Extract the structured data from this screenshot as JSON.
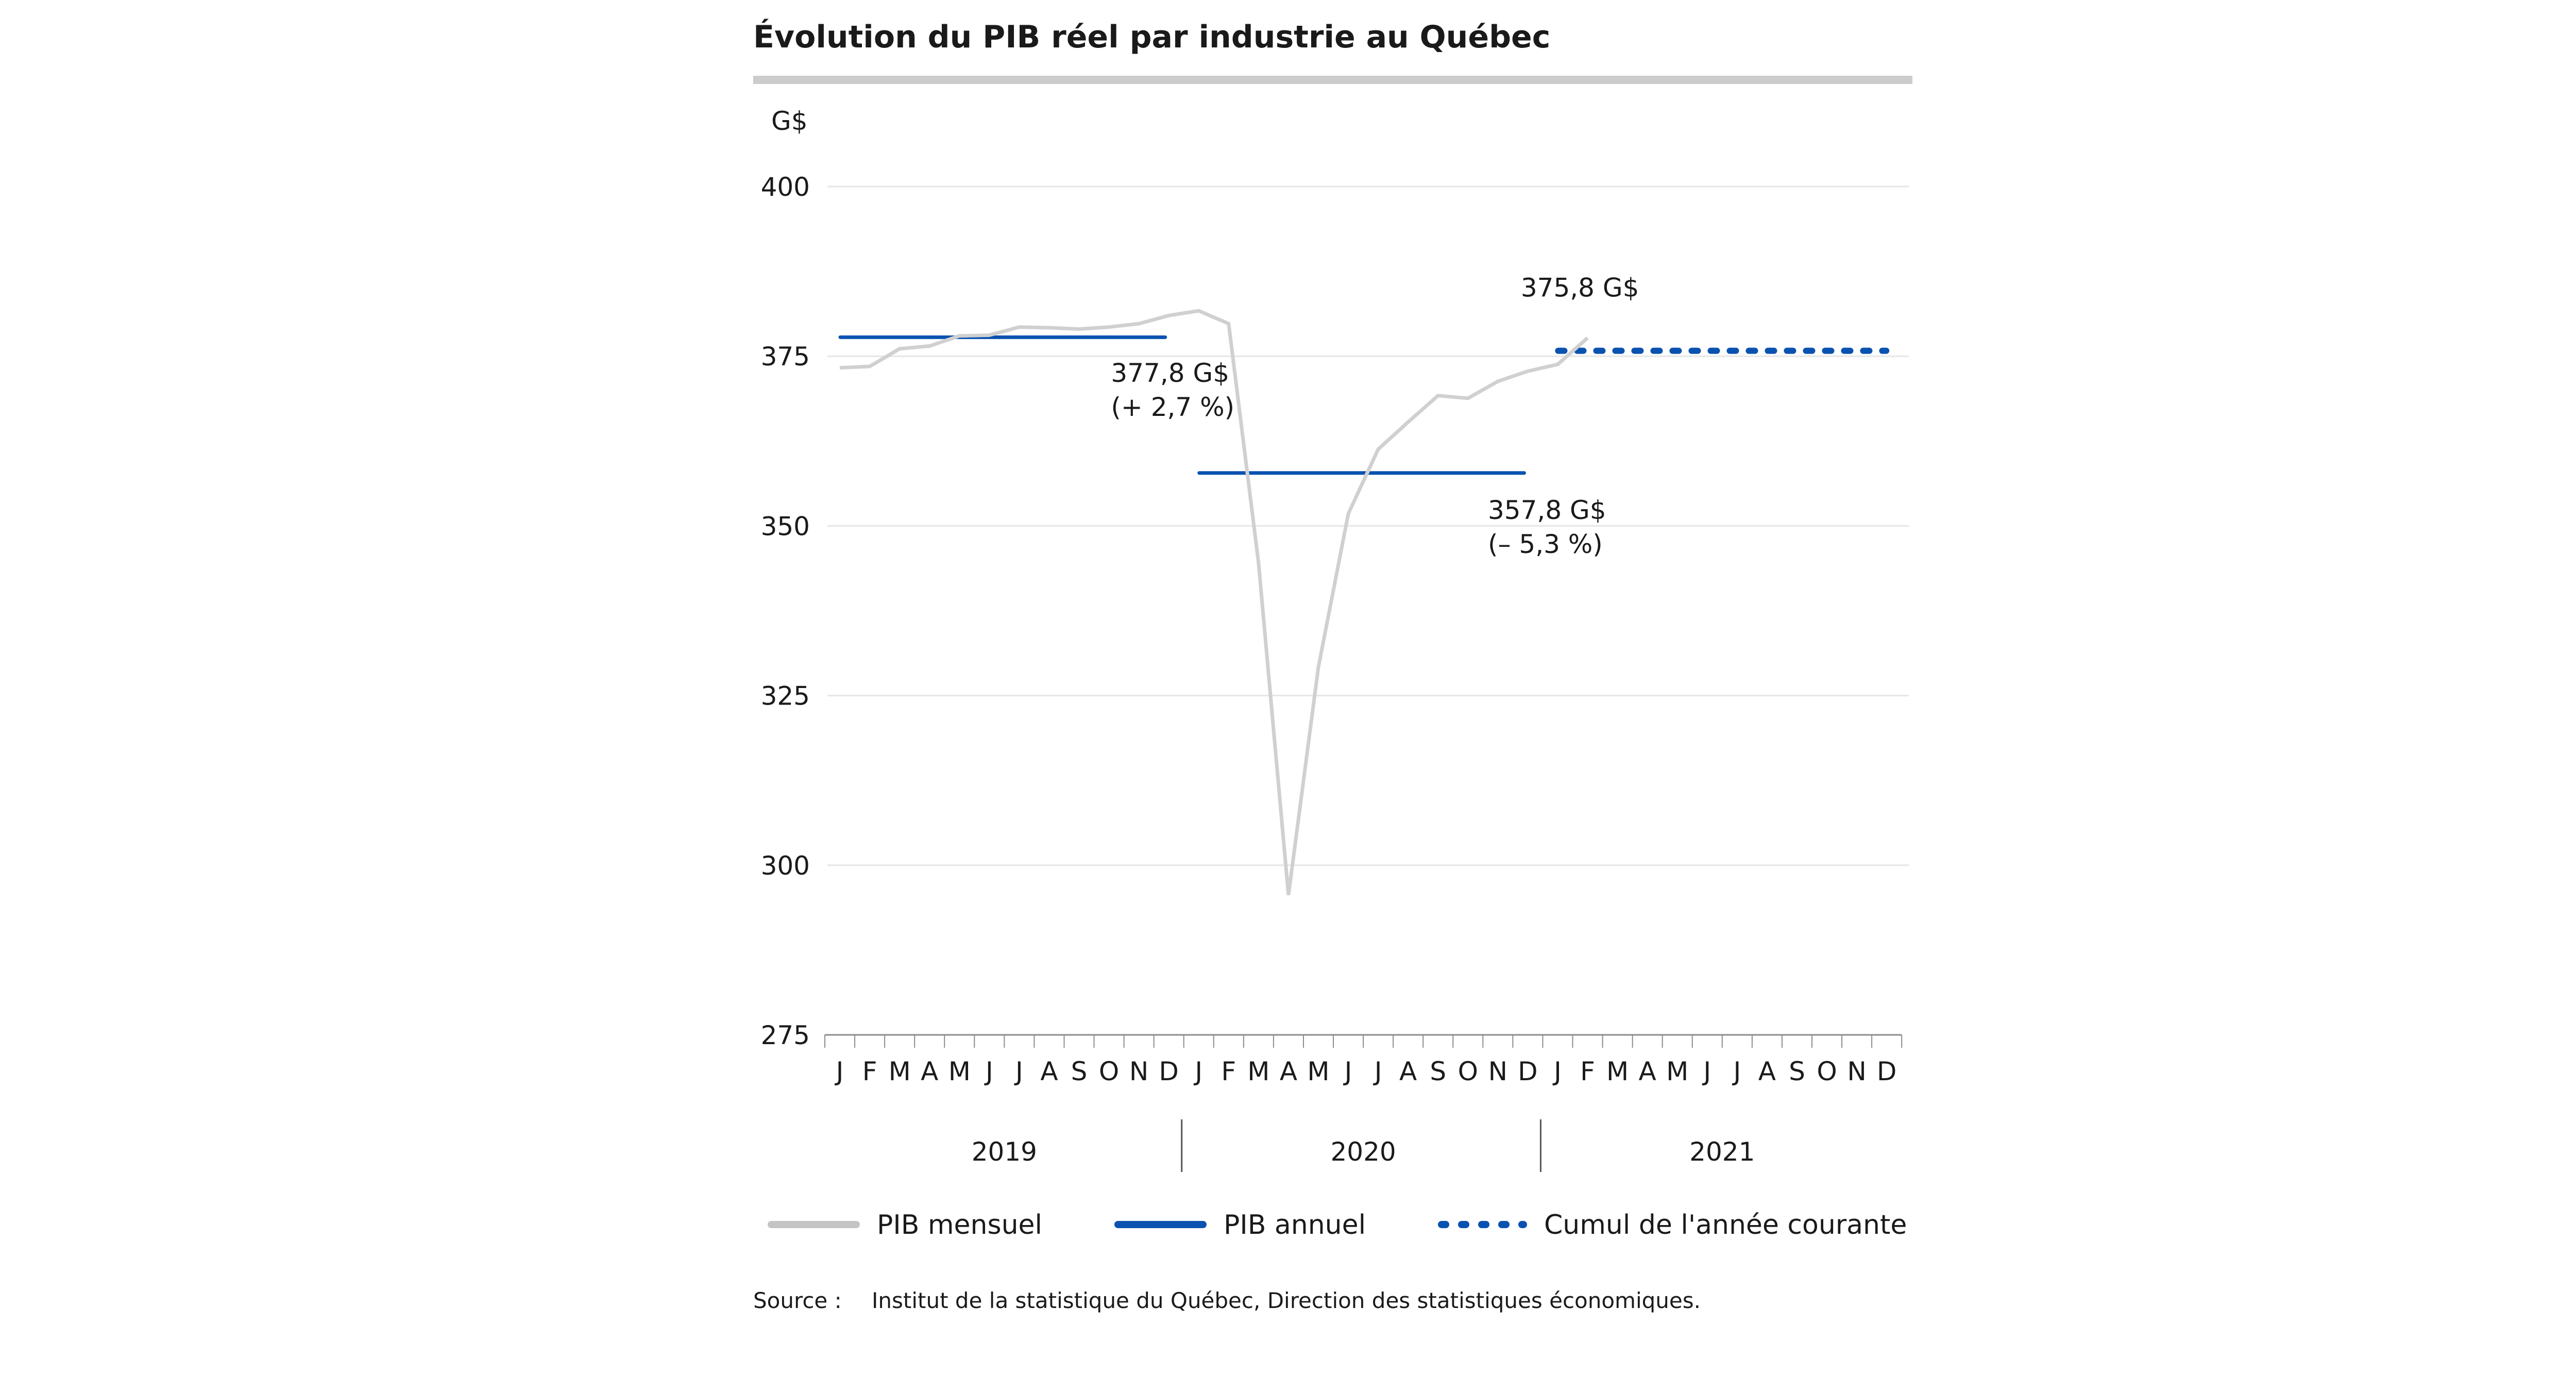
{
  "header": {
    "title": "Évolution du PIB réel par industrie au Québec"
  },
  "colors": {
    "header_bar": "#cccccc",
    "gridline": "#e6e6e6",
    "axis": "#8c8c8c",
    "monthly": "#d0d0d0",
    "annual": "#0a52b0",
    "cumulative": "#0a52b0",
    "text": "#1a1a1a"
  },
  "legend": {
    "items": [
      {
        "label": "PIB mensuel",
        "style": "solid-grey"
      },
      {
        "label": "PIB annuel",
        "style": "solid-blue"
      },
      {
        "label": "Cumul de l'année courante",
        "style": "dotted-blue"
      }
    ]
  },
  "source": {
    "label": "Source :",
    "text": "Institut de la statistique du Québec, Direction des statistiques économiques."
  },
  "annotations": [
    {
      "line1": "377,8 G$",
      "line2": "(+ 2,7 %)",
      "month_index": 10.1,
      "value": 371.2
    },
    {
      "line1": "357,8 G$",
      "line2": "(– 5,3 %)",
      "month_index": 22.7,
      "value": 351.0
    },
    {
      "line1": "375,8 G$",
      "line2": "",
      "month_index": 23.8,
      "value": 383.8
    }
  ],
  "chart_data": {
    "type": "line",
    "title": "Évolution du PIB réel par industrie au Québec",
    "xlabel": "",
    "ylabel": "G$",
    "ylim": [
      275,
      400
    ],
    "yticks": [
      275,
      300,
      325,
      350,
      375,
      400
    ],
    "grid": true,
    "legend_position": "bottom",
    "months": [
      "J",
      "F",
      "M",
      "A",
      "M",
      "J",
      "J",
      "A",
      "S",
      "O",
      "N",
      "D",
      "J",
      "F",
      "M",
      "A",
      "M",
      "J",
      "J",
      "A",
      "S",
      "O",
      "N",
      "D",
      "J",
      "F",
      "M",
      "A",
      "M",
      "J",
      "J",
      "A",
      "S",
      "O",
      "N",
      "D"
    ],
    "years": [
      "2019",
      "2020",
      "2021"
    ],
    "series": [
      {
        "name": "PIB mensuel",
        "type": "line",
        "start_month_index": 0,
        "values": [
          373.3,
          373.5,
          376.1,
          376.5,
          378.0,
          378.1,
          379.3,
          379.2,
          379.0,
          379.3,
          379.8,
          381.0,
          381.7,
          379.8,
          344.5,
          295.6,
          329.2,
          351.8,
          361.3,
          365.3,
          369.2,
          368.8,
          371.3,
          372.8,
          373.8,
          377.7
        ]
      },
      {
        "name": "PIB annuel",
        "type": "step",
        "segments": [
          {
            "year": "2019",
            "value": 377.8,
            "change": "+ 2,7 %",
            "from_month": 0,
            "to_month": 11
          },
          {
            "year": "2020",
            "value": 357.8,
            "change": "– 5,3 %",
            "from_month": 12,
            "to_month": 23
          }
        ]
      },
      {
        "name": "Cumul de l'année courante",
        "type": "dotted",
        "segments": [
          {
            "year": "2021",
            "value": 375.8,
            "from_month": 24,
            "to_month": 35
          }
        ]
      }
    ]
  }
}
